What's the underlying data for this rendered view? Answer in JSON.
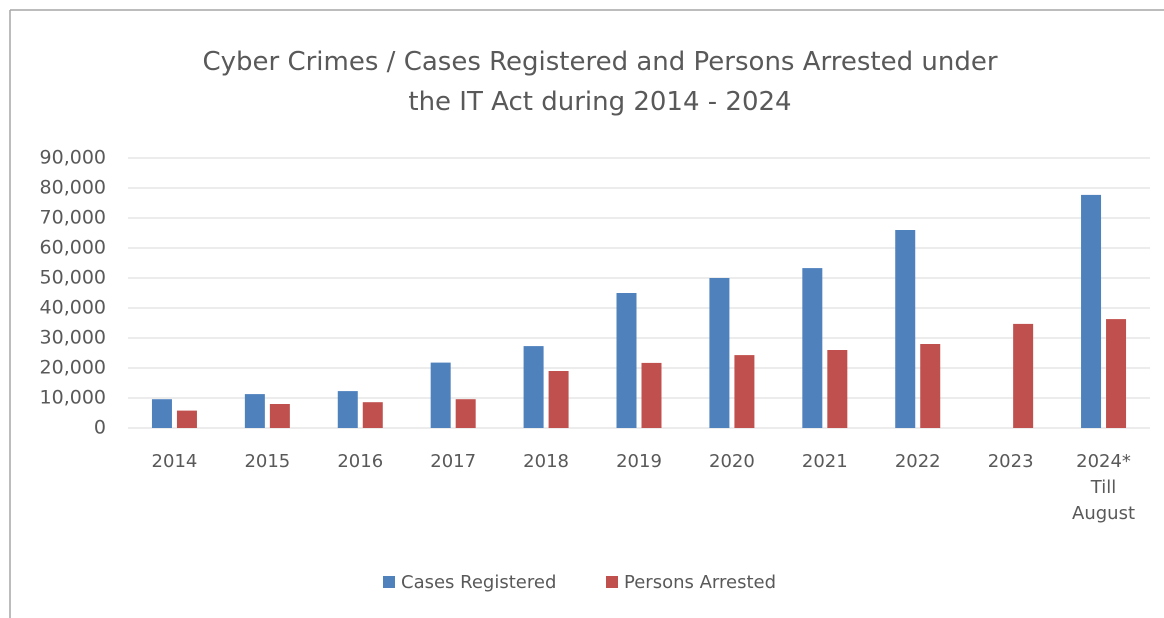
{
  "chart_data": {
    "type": "bar",
    "title": "Cyber Crimes / Cases Registered and Persons Arrested under\nthe IT Act during 2014 - 2024",
    "categories": [
      "2014",
      "2015",
      "2016",
      "2017",
      "2018",
      "2019",
      "2020",
      "2021",
      "2022",
      "2023",
      "2024*\nTill\nAugust"
    ],
    "series": [
      {
        "name": "Cases Registered",
        "color": "#4f81bd",
        "values": [
          9600,
          11300,
          12300,
          21800,
          27300,
          45000,
          50000,
          53300,
          66000,
          null,
          77700
        ]
      },
      {
        "name": "Persons Arrested",
        "color": "#c0504d",
        "values": [
          5800,
          8000,
          8600,
          9600,
          19000,
          21700,
          24300,
          26000,
          28000,
          34700,
          36300
        ]
      }
    ],
    "ylim": [
      0,
      90000
    ],
    "yticks": [
      0,
      {
        "value": 10000,
        "label": "10,000"
      },
      {
        "value": 20000,
        "label": "20,000"
      },
      {
        "value": 30000,
        "label": "30,000"
      },
      {
        "value": 40000,
        "label": "40,000"
      },
      {
        "value": 50000,
        "label": "50,000"
      },
      {
        "value": 60000,
        "label": "60,000"
      },
      {
        "value": 70000,
        "label": "70,000"
      },
      {
        "value": 80000,
        "label": "80,000"
      },
      {
        "value": 90000,
        "label": "90,000"
      }
    ],
    "grid": true,
    "legend": "bottom"
  }
}
